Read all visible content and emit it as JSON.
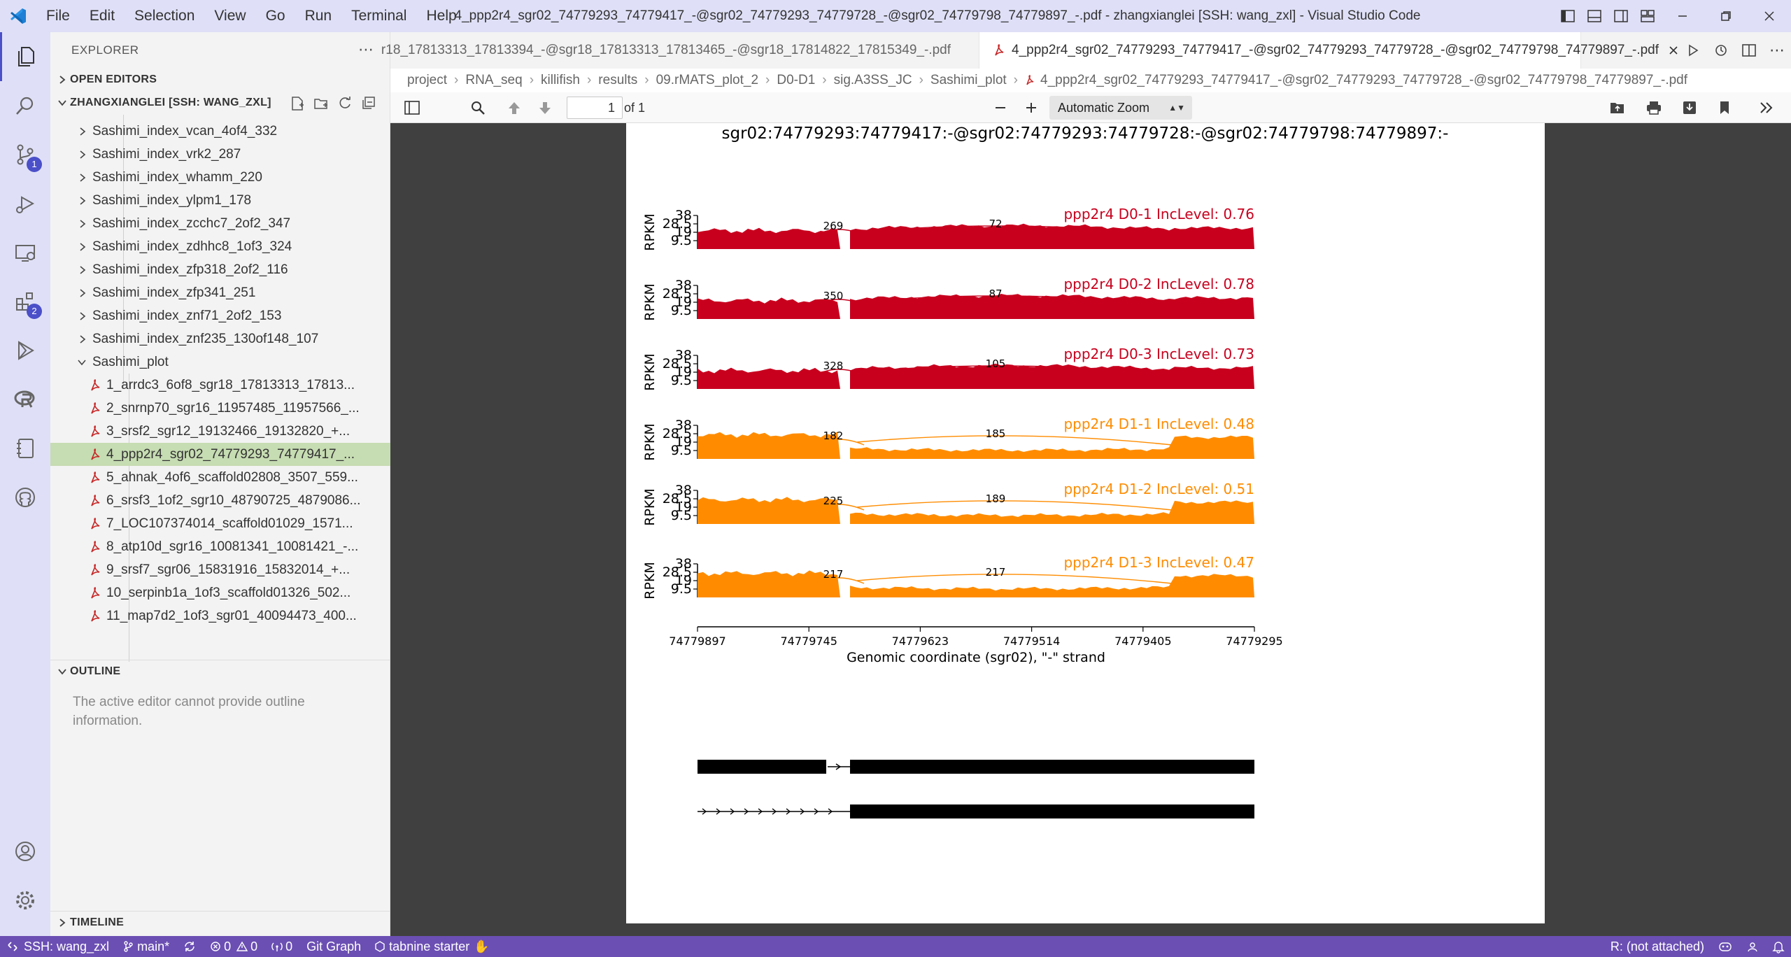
{
  "window": {
    "title": "4_ppp2r4_sgr02_74779293_74779417_-@sgr02_74779293_74779728_-@sgr02_74779798_74779897_-.pdf - zhangxianglei [SSH: wang_zxl] - Visual Studio Code",
    "menu": [
      "File",
      "Edit",
      "Selection",
      "View",
      "Go",
      "Run",
      "Terminal",
      "Help"
    ]
  },
  "activity": {
    "source_control_badge": "1",
    "extensions_badge": "2"
  },
  "sidebar": {
    "title": "EXPLORER",
    "open_editors": "OPEN EDITORS",
    "workspace": "ZHANGXIANGLEI [SSH: WANG_ZXL]",
    "folders": [
      "Sashimi_index_vcan_4of4_332",
      "Sashimi_index_vrk2_287",
      "Sashimi_index_whamm_220",
      "Sashimi_index_ylpm1_178",
      "Sashimi_index_zcchc7_2of2_347",
      "Sashimi_index_zdhhc8_1of3_324",
      "Sashimi_index_zfp318_2of2_116",
      "Sashimi_index_zfp341_251",
      "Sashimi_index_znf71_2of2_153",
      "Sashimi_index_znf235_130of148_107"
    ],
    "open_folder": "Sashimi_plot",
    "files": [
      "1_arrdc3_6of8_sgr18_17813313_17813...",
      "2_snrnp70_sgr16_11957485_11957566_...",
      "3_srsf2_sgr12_19132466_19132820_+...",
      "4_ppp2r4_sgr02_74779293_74779417_...",
      "5_ahnak_4of6_scaffold02808_3507_559...",
      "6_srsf3_1of2_sgr10_48790725_4879086...",
      "7_LOC107374014_scaffold01029_1571...",
      "8_atp10d_sgr16_10081341_10081421_-...",
      "9_srsf7_sgr06_15831916_15832014_+...",
      "10_serpinb1a_1of3_scaffold01326_502...",
      "11_map7d2_1of3_sgr01_40094473_400..."
    ],
    "outline": "OUTLINE",
    "outline_msg": "The active editor cannot provide outline information.",
    "timeline": "TIMELINE"
  },
  "tabs": [
    {
      "label": "r18_17813313_17813394_-@sgr18_17813313_17813465_-@sgr18_17814822_17815349_-.pdf"
    },
    {
      "label": "4_ppp2r4_sgr02_74779293_74779417_-@sgr02_74779293_74779728_-@sgr02_74779798_74779897_-.pdf"
    }
  ],
  "breadcrumb": [
    "project",
    "RNA_seq",
    "killifish",
    "results",
    "09.rMATS_plot_2",
    "D0-D1",
    "sig.A3SS_JC",
    "Sashimi_plot",
    "4_ppp2r4_sgr02_74779293_74779417_-@sgr02_74779293_74779728_-@sgr02_74779798_74779897_-.pdf"
  ],
  "pdf": {
    "page": "1",
    "of_pages": "of 1",
    "zoom": "Automatic Zoom"
  },
  "chart_data": {
    "type": "area",
    "title": "sgr02:74779293:74779417:-@sgr02:74779293:74779728:-@sgr02:74779798:74779897:-",
    "ylabel": "RPKM",
    "yticks": [
      "38",
      "28.5",
      "19",
      "9.5"
    ],
    "ylim": [
      0,
      38
    ],
    "xlabel": "Genomic coordinate (sgr02), \"-\" strand",
    "xticks": [
      "74779897",
      "74779745",
      "74779623",
      "74779514",
      "74779405",
      "74779295"
    ],
    "series": [
      {
        "name": "ppp2r4 D0-1 IncLevel: 0.76",
        "color": "#c8001e",
        "junction_left": "269",
        "junction_long": "72"
      },
      {
        "name": "ppp2r4 D0-2 IncLevel: 0.78",
        "color": "#c8001e",
        "junction_left": "350",
        "junction_long": "87"
      },
      {
        "name": "ppp2r4 D0-3 IncLevel: 0.73",
        "color": "#c8001e",
        "junction_left": "328",
        "junction_long": "105"
      },
      {
        "name": "ppp2r4 D1-1 IncLevel: 0.48",
        "color": "#ff8c00",
        "junction_left": "182",
        "junction_long": "185"
      },
      {
        "name": "ppp2r4 D1-2 IncLevel: 0.51",
        "color": "#ff8c00",
        "junction_left": "225",
        "junction_long": "189"
      },
      {
        "name": "ppp2r4 D1-3 IncLevel: 0.47",
        "color": "#ff8c00",
        "junction_left": "217",
        "junction_long": "217"
      }
    ]
  },
  "statusbar": {
    "remote": "SSH: wang_zxl",
    "branch": "main*",
    "problems_errors": "0",
    "problems_warnings": "0",
    "ports": "0",
    "git_graph": "Git Graph",
    "tabnine": "tabnine starter",
    "r_status": "R: (not attached)"
  }
}
